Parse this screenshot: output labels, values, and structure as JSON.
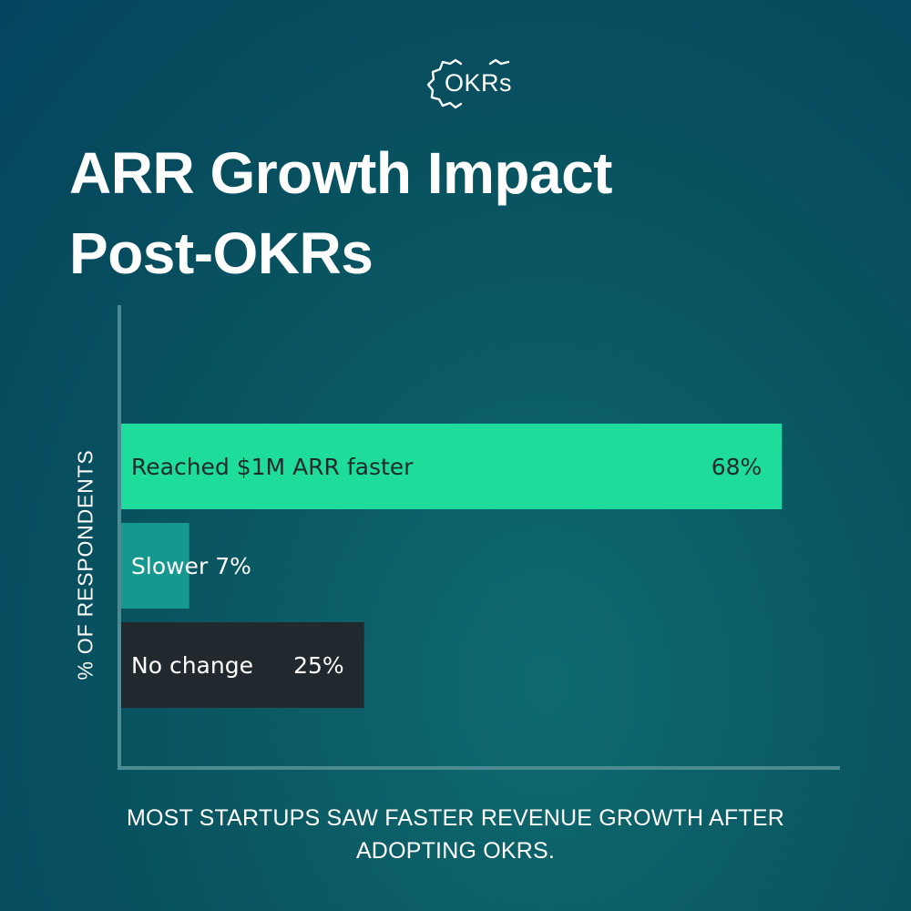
{
  "brand": {
    "logo_text": "OKRs"
  },
  "header": {
    "title_line1": "ARR Growth Impact",
    "title_line2": "Post-OKRs"
  },
  "footer": {
    "caption": "MOST STARTUPS SAW FASTER REVENUE GROWTH AFTER ADOPTING OKRS."
  },
  "colors": {
    "bar_faster": "#1edc9a",
    "bar_slower": "#159890",
    "bar_nochange": "#22292e",
    "axis": "#4d8a92",
    "text_dark": "#1c2a2e",
    "text_light": "#ffffff"
  },
  "chart_data": {
    "type": "bar",
    "orientation": "horizontal",
    "title": "ARR Growth Impact Post-OKRs",
    "ylabel": "% OF RESPONDENTS",
    "xlabel": "",
    "xlim": [
      0,
      75
    ],
    "grid": false,
    "legend": "none",
    "categories": [
      "Reached $1M ARR faster",
      "Slower",
      "No change"
    ],
    "values": [
      68,
      7,
      25
    ],
    "value_labels": [
      "68%",
      "7%",
      "25%"
    ],
    "unit": "%"
  }
}
